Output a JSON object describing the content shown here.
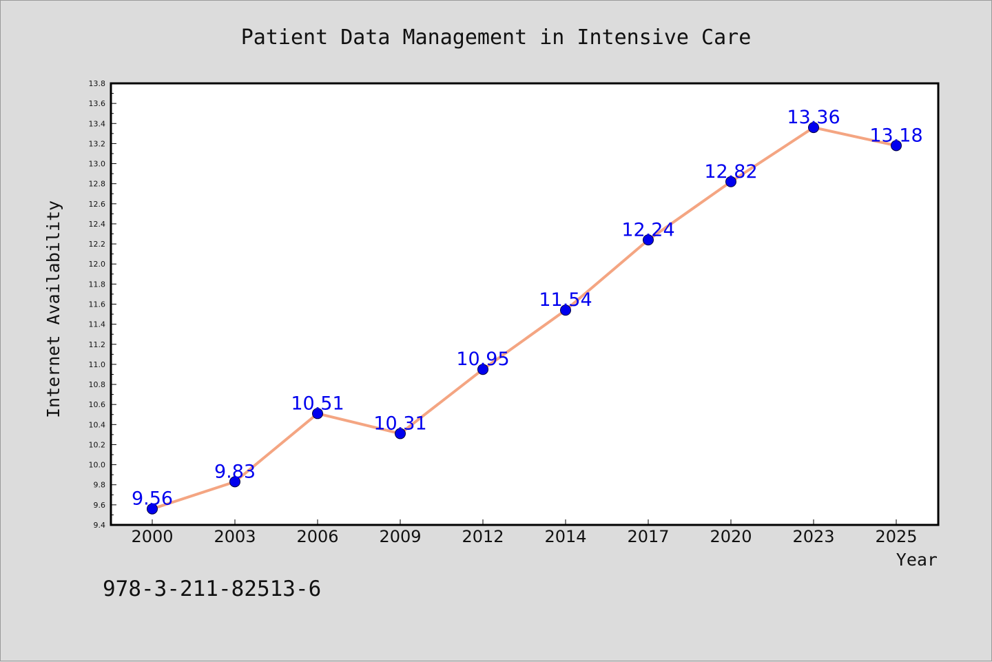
{
  "chart_data": {
    "type": "line",
    "title": "Patient Data Management in Intensive Care",
    "xlabel": "Year",
    "ylabel": "Internet Availability",
    "categories": [
      "2000",
      "2003",
      "2006",
      "2009",
      "2012",
      "2014",
      "2017",
      "2020",
      "2023",
      "2025"
    ],
    "series": [
      {
        "values": [
          9.56,
          9.83,
          10.51,
          10.31,
          10.95,
          11.54,
          12.24,
          12.82,
          13.36,
          13.18
        ],
        "labels": [
          "9.56",
          "9.83",
          "10.51",
          "10.31",
          "10.95",
          "11.54",
          "12.24",
          "12.82",
          "13.36",
          "13.18"
        ],
        "line_color": "#f4a582",
        "marker_color": "#0000ee",
        "label_color": "#0000ee"
      }
    ],
    "ylim": [
      9.4,
      13.8
    ],
    "yticks": [
      "9.4",
      "9.6",
      "9.8",
      "10.0",
      "10.2",
      "10.4",
      "10.6",
      "10.8",
      "11.0",
      "11.2",
      "11.4",
      "11.6",
      "11.8",
      "12.0",
      "12.2",
      "12.4",
      "12.6",
      "12.8",
      "13.0",
      "13.2",
      "13.4",
      "13.6",
      "13.8"
    ],
    "grid": false,
    "legend": "none"
  },
  "footer": {
    "isbn": "978-3-211-82513-6"
  },
  "colors": {
    "background": "#dcdcdc",
    "plot_background": "#ffffff",
    "axis": "#000000"
  }
}
